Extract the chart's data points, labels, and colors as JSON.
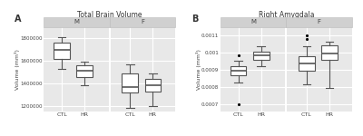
{
  "panel_A_title": "Total Brain Volume",
  "panel_B_title": "Right Amygdala",
  "panel_A_label": "A",
  "panel_B_label": "B",
  "ylabel_A": "Volume (mm³)",
  "ylabel_B": "Volume (mm³)",
  "plot_bg": "#e8e8e8",
  "facet_strip_bg": "#d0d0d0",
  "facet_strip_edge": "#bbbbbb",
  "box_fill": "#ffffff",
  "box_edge": "#555555",
  "median_color": "#555555",
  "whisker_color": "#555555",
  "flier_color": "#333333",
  "grid_color": "#ffffff",
  "panel_A": {
    "ylim": [
      1150000,
      1900000
    ],
    "yticks": [
      1200000,
      1400000,
      1600000,
      1800000
    ],
    "ytick_labels": [
      "1200000",
      "1400000",
      "1600000",
      "1800000"
    ],
    "M_CTL": {
      "q1": 1620000,
      "median": 1700000,
      "q3": 1760000,
      "whislo": 1530000,
      "whishi": 1810000,
      "fliers_high": [],
      "fliers_low": []
    },
    "M_HR": {
      "q1": 1460000,
      "median": 1510000,
      "q3": 1565000,
      "whislo": 1380000,
      "whishi": 1595000,
      "fliers_high": [],
      "fliers_low": []
    },
    "F_CTL": {
      "q1": 1320000,
      "median": 1370000,
      "q3": 1490000,
      "whislo": 1185000,
      "whishi": 1570000,
      "fliers_high": [],
      "fliers_low": []
    },
    "F_HR": {
      "q1": 1330000,
      "median": 1380000,
      "q3": 1440000,
      "whislo": 1200000,
      "whishi": 1490000,
      "fliers_high": [],
      "fliers_low": []
    }
  },
  "panel_B": {
    "ylim": [
      0.00066,
      0.00115
    ],
    "yticks": [
      0.0007,
      0.0008,
      0.0009,
      0.001,
      0.0011
    ],
    "ytick_labels": [
      "0.0007",
      "0.0008",
      "0.0009",
      "0.001",
      "0.0011"
    ],
    "M_CTL": {
      "q1": 0.00087,
      "median": 0.000895,
      "q3": 0.000925,
      "whislo": 0.00083,
      "whishi": 0.000955,
      "fliers_high": [
        0.000985
      ],
      "fliers_low": [
        0.0007
      ]
    },
    "M_HR": {
      "q1": 0.00096,
      "median": 0.000988,
      "q3": 0.00101,
      "whislo": 0.000925,
      "whishi": 0.00104,
      "fliers_high": [],
      "fliers_low": []
    },
    "F_CTL": {
      "q1": 0.000895,
      "median": 0.00094,
      "q3": 0.00098,
      "whislo": 0.00082,
      "whishi": 0.00104,
      "fliers_high": [
        0.001105,
        0.00108
      ],
      "fliers_low": []
    },
    "F_HR": {
      "q1": 0.00096,
      "median": 0.000995,
      "q3": 0.001045,
      "whislo": 0.000795,
      "whishi": 0.001065,
      "fliers_high": [],
      "fliers_low": []
    }
  }
}
